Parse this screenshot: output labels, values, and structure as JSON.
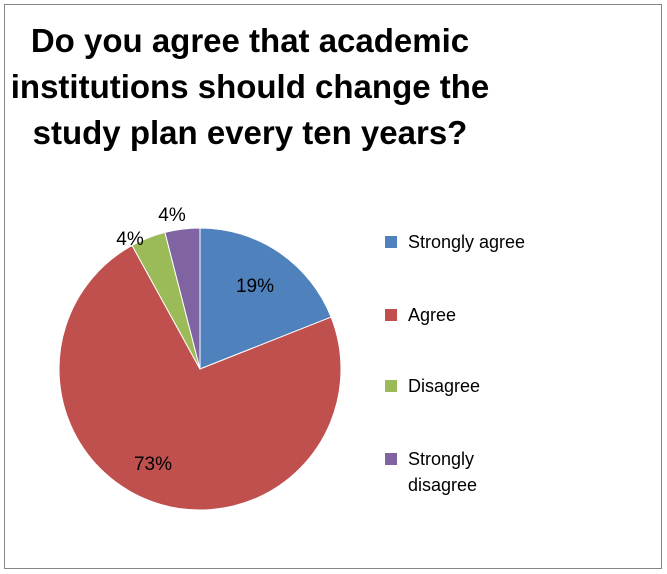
{
  "chart_data": {
    "type": "pie",
    "title_lines": [
      "Do you agree that academic",
      "institutions should change the",
      "study plan every ten years?"
    ],
    "categories": [
      "Strongly agree",
      "Agree",
      "Disagree",
      "Strongly disagree"
    ],
    "values": [
      19,
      73,
      4,
      4
    ],
    "value_labels": [
      "19%",
      "73%",
      "4%",
      "4%"
    ],
    "legend_lines": [
      [
        "Strongly agree"
      ],
      [
        "Agree"
      ],
      [
        "Disagree"
      ],
      [
        "Strongly",
        "disagree"
      ]
    ],
    "colors": [
      "#4F81BD",
      "#C0504D",
      "#9BBB59",
      "#8064A2"
    ],
    "legend_position": "right"
  }
}
